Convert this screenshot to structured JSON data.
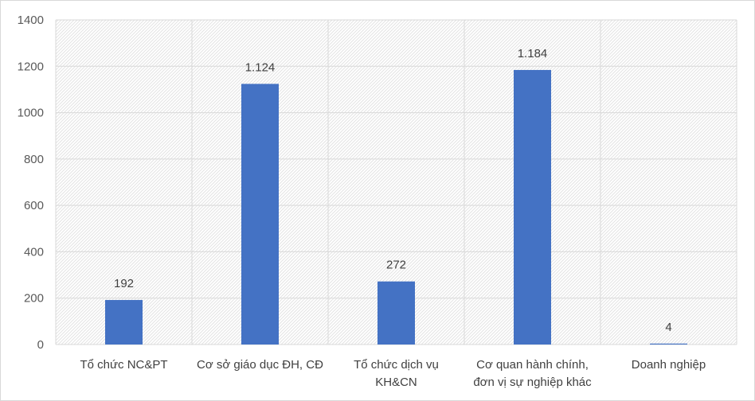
{
  "chart_data": {
    "type": "bar",
    "title": "",
    "xlabel": "",
    "ylabel": "",
    "categories": [
      [
        "Tổ chức NC&PT"
      ],
      [
        "Cơ sở giáo dục ĐH, CĐ"
      ],
      [
        "Tổ chức dịch vụ",
        "KH&CN"
      ],
      [
        "Cơ quan hành chính,",
        "đơn vị sự nghiệp khác"
      ],
      [
        "Doanh nghiệp"
      ]
    ],
    "values": [
      192,
      1124,
      272,
      1184,
      4
    ],
    "data_labels": [
      "192",
      "1.124",
      "272",
      "1.184",
      "4"
    ],
    "ylim": [
      0,
      1400
    ],
    "yticks": [
      0,
      200,
      400,
      600,
      800,
      1000,
      1200,
      1400
    ],
    "grid": true,
    "legend": "none",
    "colors": {
      "bar": "#4472c4",
      "grid": "#d9d9d9",
      "plot_pattern": "#e3e3e3"
    }
  }
}
